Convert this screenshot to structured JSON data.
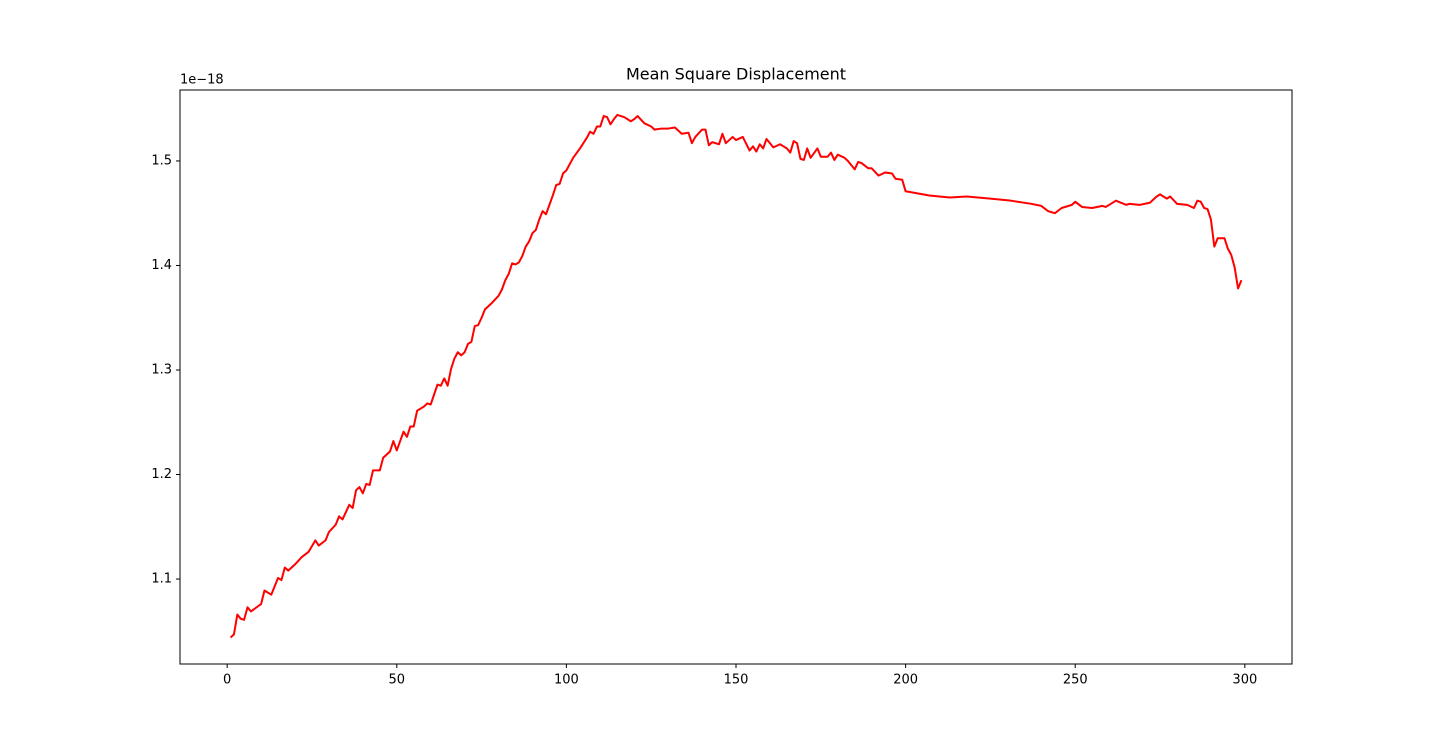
{
  "chart_data": {
    "type": "line",
    "title": "Mean Square Displacement",
    "y_offset_label": "1e−18",
    "color": "#ff0000",
    "x": [
      1,
      2,
      3,
      4,
      5,
      6,
      7,
      10,
      11,
      13,
      15,
      16,
      17,
      18,
      20,
      22,
      24,
      26,
      27,
      29,
      30,
      32,
      33,
      34,
      36,
      37,
      38,
      39,
      40,
      41,
      42,
      43,
      45,
      46,
      48,
      49,
      50,
      52,
      53,
      54,
      55,
      56,
      58,
      59,
      60,
      62,
      63,
      64,
      65,
      66,
      67,
      68,
      69,
      70,
      71,
      72,
      73,
      74,
      75,
      76,
      78,
      80,
      81,
      82,
      83,
      84,
      85,
      86,
      87,
      88,
      89,
      90,
      91,
      92,
      93,
      94,
      95,
      96,
      97,
      98,
      99,
      100,
      102,
      104,
      106,
      107,
      108,
      109,
      110,
      111,
      112,
      113,
      114,
      115,
      117,
      119,
      120,
      121,
      123,
      125,
      126,
      128,
      130,
      132,
      134,
      136,
      137,
      138,
      140,
      141,
      142,
      143,
      145,
      146,
      147,
      149,
      150,
      152,
      154,
      155,
      156,
      157,
      158,
      159,
      161,
      163,
      165,
      166,
      167,
      168,
      169,
      170,
      171,
      172,
      174,
      175,
      177,
      178,
      179,
      180,
      182,
      183,
      185,
      186,
      187,
      189,
      190,
      192,
      194,
      196,
      197,
      199,
      200,
      207,
      213,
      218,
      225,
      228,
      231,
      237,
      240,
      242,
      244,
      246,
      249,
      250,
      252,
      255,
      258,
      259,
      262,
      265,
      266,
      269,
      272,
      274,
      275,
      277,
      278,
      280,
      283,
      285,
      286,
      287,
      288,
      289,
      290,
      291,
      292,
      294,
      295,
      296,
      297,
      298,
      299
    ],
    "values": [
      1.044,
      1.047,
      1.066,
      1.062,
      1.061,
      1.073,
      1.069,
      1.076,
      1.089,
      1.085,
      1.101,
      1.099,
      1.111,
      1.108,
      1.114,
      1.121,
      1.126,
      1.137,
      1.132,
      1.137,
      1.145,
      1.152,
      1.16,
      1.157,
      1.171,
      1.168,
      1.185,
      1.188,
      1.182,
      1.191,
      1.19,
      1.204,
      1.204,
      1.216,
      1.222,
      1.232,
      1.223,
      1.241,
      1.236,
      1.246,
      1.246,
      1.261,
      1.265,
      1.268,
      1.267,
      1.286,
      1.285,
      1.292,
      1.285,
      1.301,
      1.311,
      1.317,
      1.314,
      1.317,
      1.325,
      1.327,
      1.342,
      1.343,
      1.35,
      1.358,
      1.364,
      1.371,
      1.377,
      1.386,
      1.392,
      1.402,
      1.401,
      1.403,
      1.409,
      1.418,
      1.423,
      1.431,
      1.434,
      1.444,
      1.452,
      1.449,
      1.458,
      1.467,
      1.477,
      1.478,
      1.488,
      1.491,
      1.503,
      1.512,
      1.522,
      1.528,
      1.526,
      1.533,
      1.533,
      1.543,
      1.542,
      1.535,
      1.54,
      1.544,
      1.542,
      1.538,
      1.54,
      1.543,
      1.536,
      1.533,
      1.53,
      1.531,
      1.531,
      1.532,
      1.526,
      1.527,
      1.517,
      1.523,
      1.53,
      1.53,
      1.515,
      1.518,
      1.516,
      1.526,
      1.517,
      1.523,
      1.52,
      1.523,
      1.51,
      1.514,
      1.509,
      1.516,
      1.512,
      1.521,
      1.513,
      1.516,
      1.512,
      1.508,
      1.519,
      1.517,
      1.502,
      1.501,
      1.512,
      1.503,
      1.512,
      1.504,
      1.504,
      1.508,
      1.501,
      1.506,
      1.503,
      1.5,
      1.492,
      1.499,
      1.498,
      1.493,
      1.493,
      1.486,
      1.489,
      1.488,
      1.483,
      1.482,
      1.471,
      1.467,
      1.465,
      1.466,
      1.464,
      1.463,
      1.462,
      1.459,
      1.457,
      1.452,
      1.45,
      1.455,
      1.458,
      1.461,
      1.456,
      1.455,
      1.457,
      1.456,
      1.462,
      1.458,
      1.459,
      1.458,
      1.46,
      1.466,
      1.468,
      1.464,
      1.466,
      1.459,
      1.458,
      1.455,
      1.462,
      1.461,
      1.455,
      1.454,
      1.444,
      1.418,
      1.426,
      1.426,
      1.416,
      1.41,
      1.398,
      1.378,
      1.386
    ],
    "xlim": [
      -13.9,
      313.9
    ],
    "ylim": [
      1.0187,
      1.5679
    ],
    "xticks": [
      0,
      50,
      100,
      150,
      200,
      250,
      300
    ],
    "yticks": [
      1.1,
      1.2,
      1.3,
      1.4,
      1.5
    ]
  }
}
